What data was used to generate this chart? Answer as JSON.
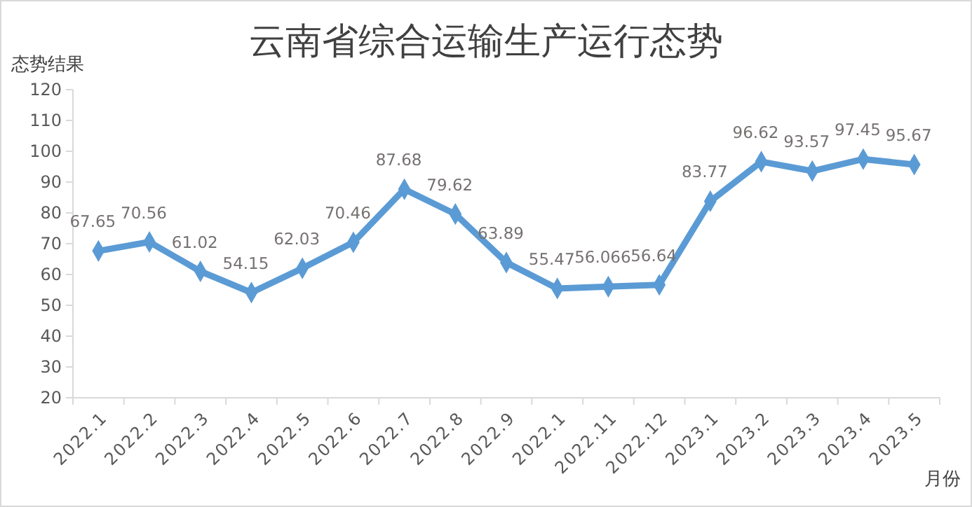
{
  "chart_data": {
    "type": "line",
    "title": "云南省综合运输生产运行态势",
    "ylabel": "态势结果",
    "xlabel": "月份",
    "categories": [
      "2022.1",
      "2022.2",
      "2022.3",
      "2022.4",
      "2022.5",
      "2022.6",
      "2022.7",
      "2022.8",
      "2022.9",
      "2022.1",
      "2022.11",
      "2022.12",
      "2023.1",
      "2023.2",
      "2023.3",
      "2023.4",
      "2023.5"
    ],
    "series": [
      {
        "color": "#5b9bd5",
        "values": [
          67.65,
          70.56,
          61.02,
          54.15,
          62.03,
          70.46,
          87.68,
          79.62,
          63.89,
          55.47,
          56.066,
          56.64,
          83.77,
          96.62,
          93.57,
          97.45,
          95.67
        ]
      }
    ],
    "ylim": [
      20,
      120
    ],
    "yticks": [
      20,
      30,
      40,
      50,
      60,
      70,
      80,
      90,
      100,
      110,
      120
    ],
    "data_labels": true,
    "marker": "diamond",
    "line_style": "solid"
  }
}
